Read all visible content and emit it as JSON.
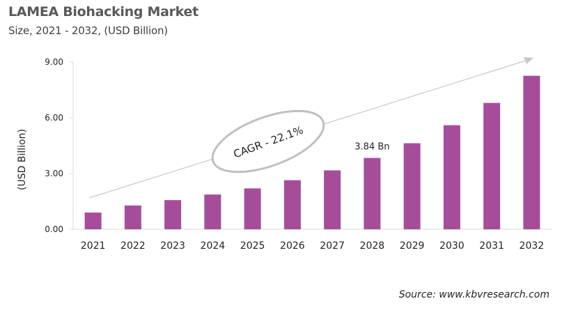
{
  "chart_data": {
    "type": "bar",
    "title": "LAMEA Biohacking Market",
    "subtitle": "Size, 2021 - 2032, (USD Billion)",
    "xlabel": "",
    "ylabel": "(USD Billion)",
    "ylim": [
      0,
      9
    ],
    "yticks": [
      "0.00",
      "3.00",
      "6.00",
      "9.00"
    ],
    "categories": [
      "2021",
      "2022",
      "2023",
      "2024",
      "2025",
      "2026",
      "2027",
      "2028",
      "2029",
      "2030",
      "2031",
      "2032"
    ],
    "values": [
      0.9,
      1.28,
      1.57,
      1.87,
      2.2,
      2.64,
      3.17,
      3.84,
      4.63,
      5.6,
      6.8,
      8.26
    ],
    "bar_color": "#A64D9A",
    "grid": false,
    "annotations": {
      "cagr": "CAGR - 22.1%",
      "data_label": "3.84 Bn",
      "data_label_category": "2028"
    }
  },
  "source": "Source: www.kbvresearch.com"
}
